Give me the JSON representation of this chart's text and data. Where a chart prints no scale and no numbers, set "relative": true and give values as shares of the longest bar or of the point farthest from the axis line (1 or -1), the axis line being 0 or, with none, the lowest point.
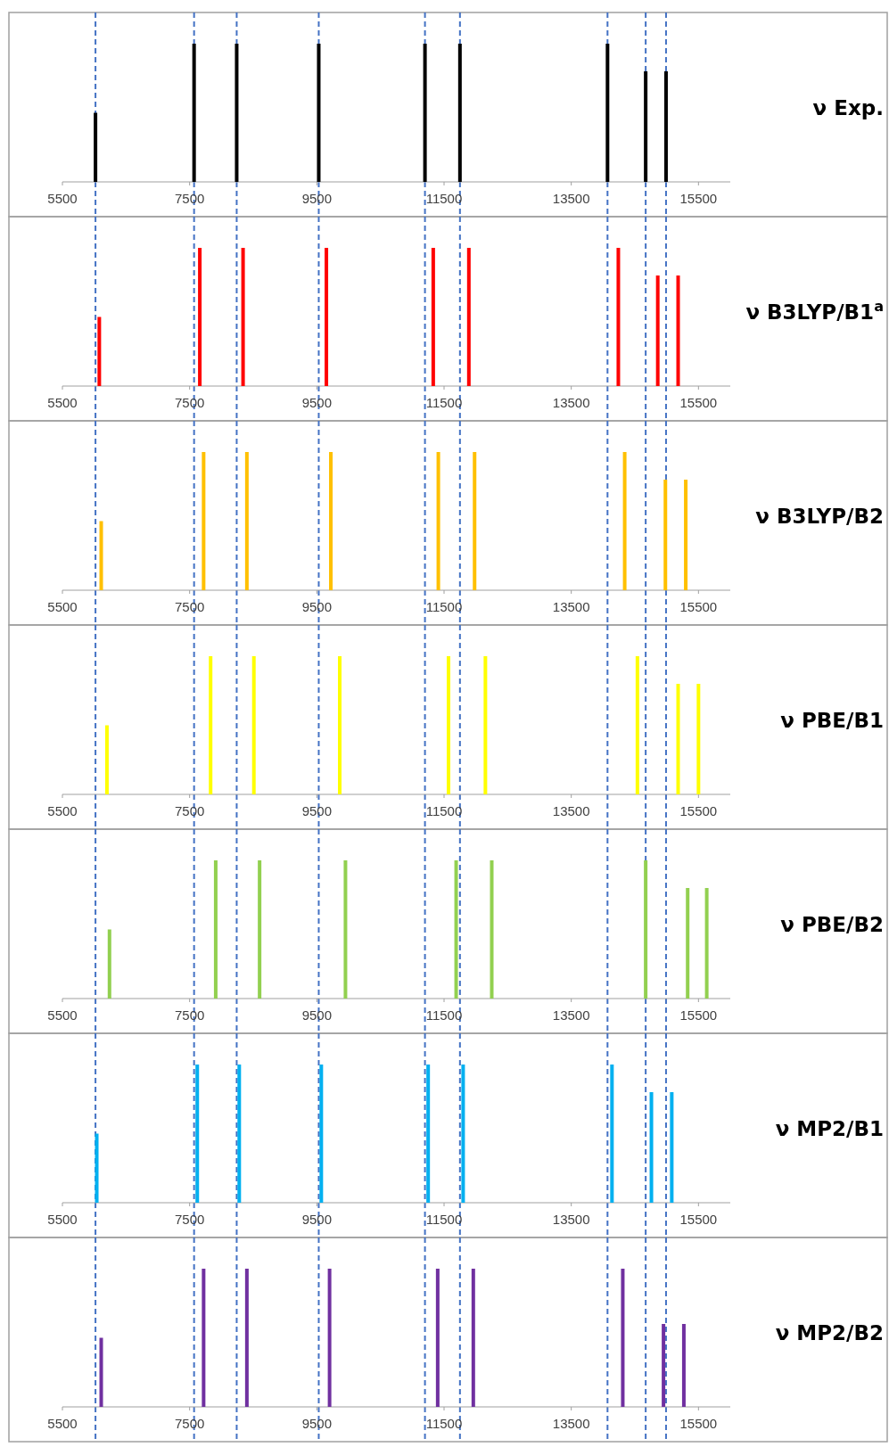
{
  "chart_data": [
    {
      "type": "bar",
      "y2label": "ν Exp.",
      "x": [
        6020,
        7570,
        8240,
        9530,
        11200,
        11750,
        14070,
        14670,
        14990
      ],
      "values": [
        0.5,
        1,
        1,
        1,
        1,
        1,
        1,
        0.8,
        0.8
      ],
      "color": "#000000",
      "relative": true,
      "xlim": [
        5500,
        16000
      ],
      "xticks": [
        5500,
        7500,
        9500,
        11500,
        13500,
        15500
      ],
      "ref_lines": [
        {
          "axis": "x",
          "value": 6020,
          "color": "#4472c4",
          "line_style": "dashed"
        },
        {
          "axis": "x",
          "value": 7570,
          "color": "#4472c4",
          "line_style": "dashed"
        },
        {
          "axis": "x",
          "value": 8240,
          "color": "#4472c4",
          "line_style": "dashed"
        },
        {
          "axis": "x",
          "value": 9530,
          "color": "#4472c4",
          "line_style": "dashed"
        },
        {
          "axis": "x",
          "value": 11200,
          "color": "#4472c4",
          "line_style": "dashed"
        },
        {
          "axis": "x",
          "value": 11750,
          "color": "#4472c4",
          "line_style": "dashed"
        },
        {
          "axis": "x",
          "value": 14070,
          "color": "#4472c4",
          "line_style": "dashed"
        },
        {
          "axis": "x",
          "value": 14670,
          "color": "#4472c4",
          "line_style": "dashed"
        },
        {
          "axis": "x",
          "value": 14990,
          "color": "#4472c4",
          "line_style": "dashed"
        }
      ]
    },
    {
      "type": "bar",
      "y2label": "ν B3LYP/B1$^{a}$",
      "x": [
        6080,
        7660,
        8340,
        9650,
        11330,
        11890,
        14240,
        14860,
        15180
      ],
      "values": [
        0.5,
        1,
        1,
        1,
        1,
        1,
        1,
        0.8,
        0.8
      ],
      "color": "#ff0000",
      "relative": true,
      "xlim": [
        5500,
        16000
      ],
      "xticks": [
        5500,
        7500,
        9500,
        11500,
        13500,
        15500
      ],
      "ref_lines": [
        {
          "axis": "x",
          "value": 6020,
          "color": "#4472c4",
          "line_style": "dashed"
        },
        {
          "axis": "x",
          "value": 7570,
          "color": "#4472c4",
          "line_style": "dashed"
        },
        {
          "axis": "x",
          "value": 8240,
          "color": "#4472c4",
          "line_style": "dashed"
        },
        {
          "axis": "x",
          "value": 9530,
          "color": "#4472c4",
          "line_style": "dashed"
        },
        {
          "axis": "x",
          "value": 11200,
          "color": "#4472c4",
          "line_style": "dashed"
        },
        {
          "axis": "x",
          "value": 11750,
          "color": "#4472c4",
          "line_style": "dashed"
        },
        {
          "axis": "x",
          "value": 14070,
          "color": "#4472c4",
          "line_style": "dashed"
        },
        {
          "axis": "x",
          "value": 14670,
          "color": "#4472c4",
          "line_style": "dashed"
        },
        {
          "axis": "x",
          "value": 14990,
          "color": "#4472c4",
          "line_style": "dashed"
        }
      ]
    },
    {
      "type": "bar",
      "y2label": "ν B3LYP/B2",
      "x": [
        6110,
        7720,
        8400,
        9720,
        11410,
        11980,
        14340,
        14980,
        15300
      ],
      "values": [
        0.5,
        1,
        1,
        1,
        1,
        1,
        1,
        0.8,
        0.8
      ],
      "color": "#ffc000",
      "relative": true,
      "xlim": [
        5500,
        16000
      ],
      "xticks": [
        5500,
        7500,
        9500,
        11500,
        13500,
        15500
      ],
      "ref_lines": [
        {
          "axis": "x",
          "value": 6020,
          "color": "#4472c4",
          "line_style": "dashed"
        },
        {
          "axis": "x",
          "value": 7570,
          "color": "#4472c4",
          "line_style": "dashed"
        },
        {
          "axis": "x",
          "value": 8240,
          "color": "#4472c4",
          "line_style": "dashed"
        },
        {
          "axis": "x",
          "value": 9530,
          "color": "#4472c4",
          "line_style": "dashed"
        },
        {
          "axis": "x",
          "value": 11200,
          "color": "#4472c4",
          "line_style": "dashed"
        },
        {
          "axis": "x",
          "value": 11750,
          "color": "#4472c4",
          "line_style": "dashed"
        },
        {
          "axis": "x",
          "value": 14070,
          "color": "#4472c4",
          "line_style": "dashed"
        },
        {
          "axis": "x",
          "value": 14670,
          "color": "#4472c4",
          "line_style": "dashed"
        },
        {
          "axis": "x",
          "value": 14990,
          "color": "#4472c4",
          "line_style": "dashed"
        }
      ]
    },
    {
      "type": "bar",
      "y2label": "ν PBE/B1",
      "x": [
        6200,
        7830,
        8510,
        9860,
        11570,
        12150,
        14540,
        15180,
        15500
      ],
      "values": [
        0.5,
        1,
        1,
        1,
        1,
        1,
        1,
        0.8,
        0.8
      ],
      "color": "#ffff00",
      "relative": true,
      "xlim": [
        5500,
        16000
      ],
      "xticks": [
        5500,
        7500,
        9500,
        11500,
        13500,
        15500
      ],
      "ref_lines": [
        {
          "axis": "x",
          "value": 6020,
          "color": "#4472c4",
          "line_style": "dashed"
        },
        {
          "axis": "x",
          "value": 7570,
          "color": "#4472c4",
          "line_style": "dashed"
        },
        {
          "axis": "x",
          "value": 8240,
          "color": "#4472c4",
          "line_style": "dashed"
        },
        {
          "axis": "x",
          "value": 9530,
          "color": "#4472c4",
          "line_style": "dashed"
        },
        {
          "axis": "x",
          "value": 11200,
          "color": "#4472c4",
          "line_style": "dashed"
        },
        {
          "axis": "x",
          "value": 11750,
          "color": "#4472c4",
          "line_style": "dashed"
        },
        {
          "axis": "x",
          "value": 14070,
          "color": "#4472c4",
          "line_style": "dashed"
        },
        {
          "axis": "x",
          "value": 14670,
          "color": "#4472c4",
          "line_style": "dashed"
        },
        {
          "axis": "x",
          "value": 14990,
          "color": "#4472c4",
          "line_style": "dashed"
        }
      ]
    },
    {
      "type": "bar",
      "y2label": "ν PBE/B2",
      "x": [
        6240,
        7910,
        8600,
        9950,
        11690,
        12250,
        14670,
        15330,
        15630
      ],
      "values": [
        0.5,
        1,
        1,
        1,
        1,
        1,
        1,
        0.8,
        0.8
      ],
      "color": "#92d050",
      "relative": true,
      "xlim": [
        5500,
        16000
      ],
      "xticks": [
        5500,
        7500,
        9500,
        11500,
        13500,
        15500
      ],
      "ref_lines": [
        {
          "axis": "x",
          "value": 6020,
          "color": "#4472c4",
          "line_style": "dashed"
        },
        {
          "axis": "x",
          "value": 7570,
          "color": "#4472c4",
          "line_style": "dashed"
        },
        {
          "axis": "x",
          "value": 8240,
          "color": "#4472c4",
          "line_style": "dashed"
        },
        {
          "axis": "x",
          "value": 9530,
          "color": "#4472c4",
          "line_style": "dashed"
        },
        {
          "axis": "x",
          "value": 11200,
          "color": "#4472c4",
          "line_style": "dashed"
        },
        {
          "axis": "x",
          "value": 11750,
          "color": "#4472c4",
          "line_style": "dashed"
        },
        {
          "axis": "x",
          "value": 14070,
          "color": "#4472c4",
          "line_style": "dashed"
        },
        {
          "axis": "x",
          "value": 14670,
          "color": "#4472c4",
          "line_style": "dashed"
        },
        {
          "axis": "x",
          "value": 14990,
          "color": "#4472c4",
          "line_style": "dashed"
        }
      ]
    },
    {
      "type": "bar",
      "y2label": "ν MP2/B1",
      "x": [
        6040,
        7620,
        8280,
        9570,
        11250,
        11800,
        14140,
        14760,
        15080
      ],
      "values": [
        0.5,
        1,
        1,
        1,
        1,
        1,
        1,
        0.8,
        0.8
      ],
      "color": "#00b0f0",
      "relative": true,
      "xlim": [
        5500,
        16000
      ],
      "xticks": [
        5500,
        7500,
        9500,
        11500,
        13500,
        15500
      ],
      "ref_lines": [
        {
          "axis": "x",
          "value": 6020,
          "color": "#4472c4",
          "line_style": "dashed"
        },
        {
          "axis": "x",
          "value": 7570,
          "color": "#4472c4",
          "line_style": "dashed"
        },
        {
          "axis": "x",
          "value": 8240,
          "color": "#4472c4",
          "line_style": "dashed"
        },
        {
          "axis": "x",
          "value": 9530,
          "color": "#4472c4",
          "line_style": "dashed"
        },
        {
          "axis": "x",
          "value": 11200,
          "color": "#4472c4",
          "line_style": "dashed"
        },
        {
          "axis": "x",
          "value": 11750,
          "color": "#4472c4",
          "line_style": "dashed"
        },
        {
          "axis": "x",
          "value": 14070,
          "color": "#4472c4",
          "line_style": "dashed"
        },
        {
          "axis": "x",
          "value": 14670,
          "color": "#4472c4",
          "line_style": "dashed"
        },
        {
          "axis": "x",
          "value": 14990,
          "color": "#4472c4",
          "line_style": "dashed"
        }
      ]
    },
    {
      "type": "bar",
      "y2label": "ν MP2/B2",
      "x": [
        6110,
        7720,
        8400,
        9700,
        11400,
        11960,
        14310,
        14950,
        15270
      ],
      "values": [
        0.5,
        1,
        1,
        1,
        1,
        1,
        1,
        0.6,
        0.6
      ],
      "color": "#7030a0",
      "relative": true,
      "xlim": [
        5500,
        16000
      ],
      "xticks": [
        5500,
        7500,
        9500,
        11500,
        13500,
        15500
      ],
      "ref_lines": [
        {
          "axis": "x",
          "value": 6020,
          "color": "#4472c4",
          "line_style": "dashed"
        },
        {
          "axis": "x",
          "value": 7570,
          "color": "#4472c4",
          "line_style": "dashed"
        },
        {
          "axis": "x",
          "value": 8240,
          "color": "#4472c4",
          "line_style": "dashed"
        },
        {
          "axis": "x",
          "value": 9530,
          "color": "#4472c4",
          "line_style": "dashed"
        },
        {
          "axis": "x",
          "value": 11200,
          "color": "#4472c4",
          "line_style": "dashed"
        },
        {
          "axis": "x",
          "value": 11750,
          "color": "#4472c4",
          "line_style": "dashed"
        },
        {
          "axis": "x",
          "value": 14070,
          "color": "#4472c4",
          "line_style": "dashed"
        },
        {
          "axis": "x",
          "value": 14670,
          "color": "#4472c4",
          "line_style": "dashed"
        },
        {
          "axis": "x",
          "value": 14990,
          "color": "#4472c4",
          "line_style": "dashed"
        }
      ]
    }
  ]
}
